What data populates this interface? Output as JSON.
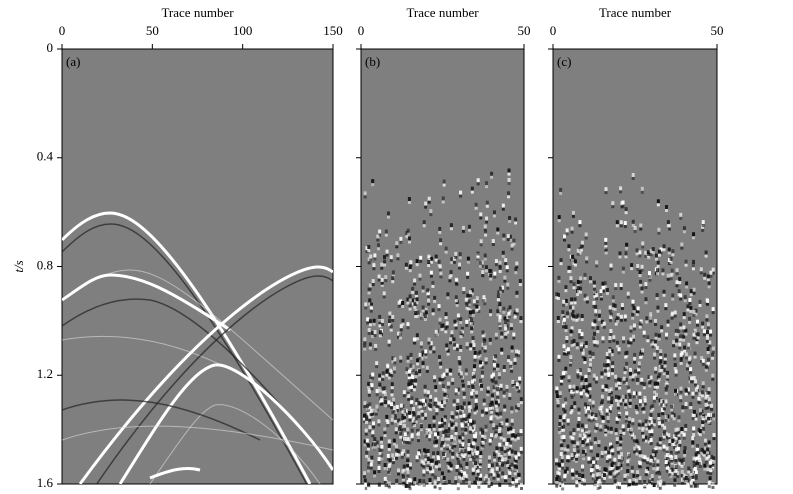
{
  "chart_data": [
    {
      "type": "seismic",
      "panel_label": "(a)",
      "title": "Trace number",
      "xlim": [
        0,
        150
      ],
      "xticks": [
        0,
        50,
        100,
        150
      ],
      "ylabel": "t/s",
      "ylim": [
        0,
        1.6
      ],
      "yticks": [
        0,
        0.4,
        0.8,
        1.2,
        1.6
      ],
      "color": "#7f7f7f"
    },
    {
      "type": "seismic",
      "panel_label": "(b)",
      "title": "Trace number",
      "xlim": [
        0,
        50
      ],
      "xticks": [
        0,
        50
      ],
      "ylim": [
        0,
        1.6
      ],
      "color": "#7f7f7f"
    },
    {
      "type": "seismic",
      "panel_label": "(c)",
      "title": "Trace number",
      "xlim": [
        0,
        50
      ],
      "xticks": [
        0,
        50
      ],
      "ylim": [
        0,
        1.6
      ],
      "color": "#7f7f7f"
    }
  ]
}
